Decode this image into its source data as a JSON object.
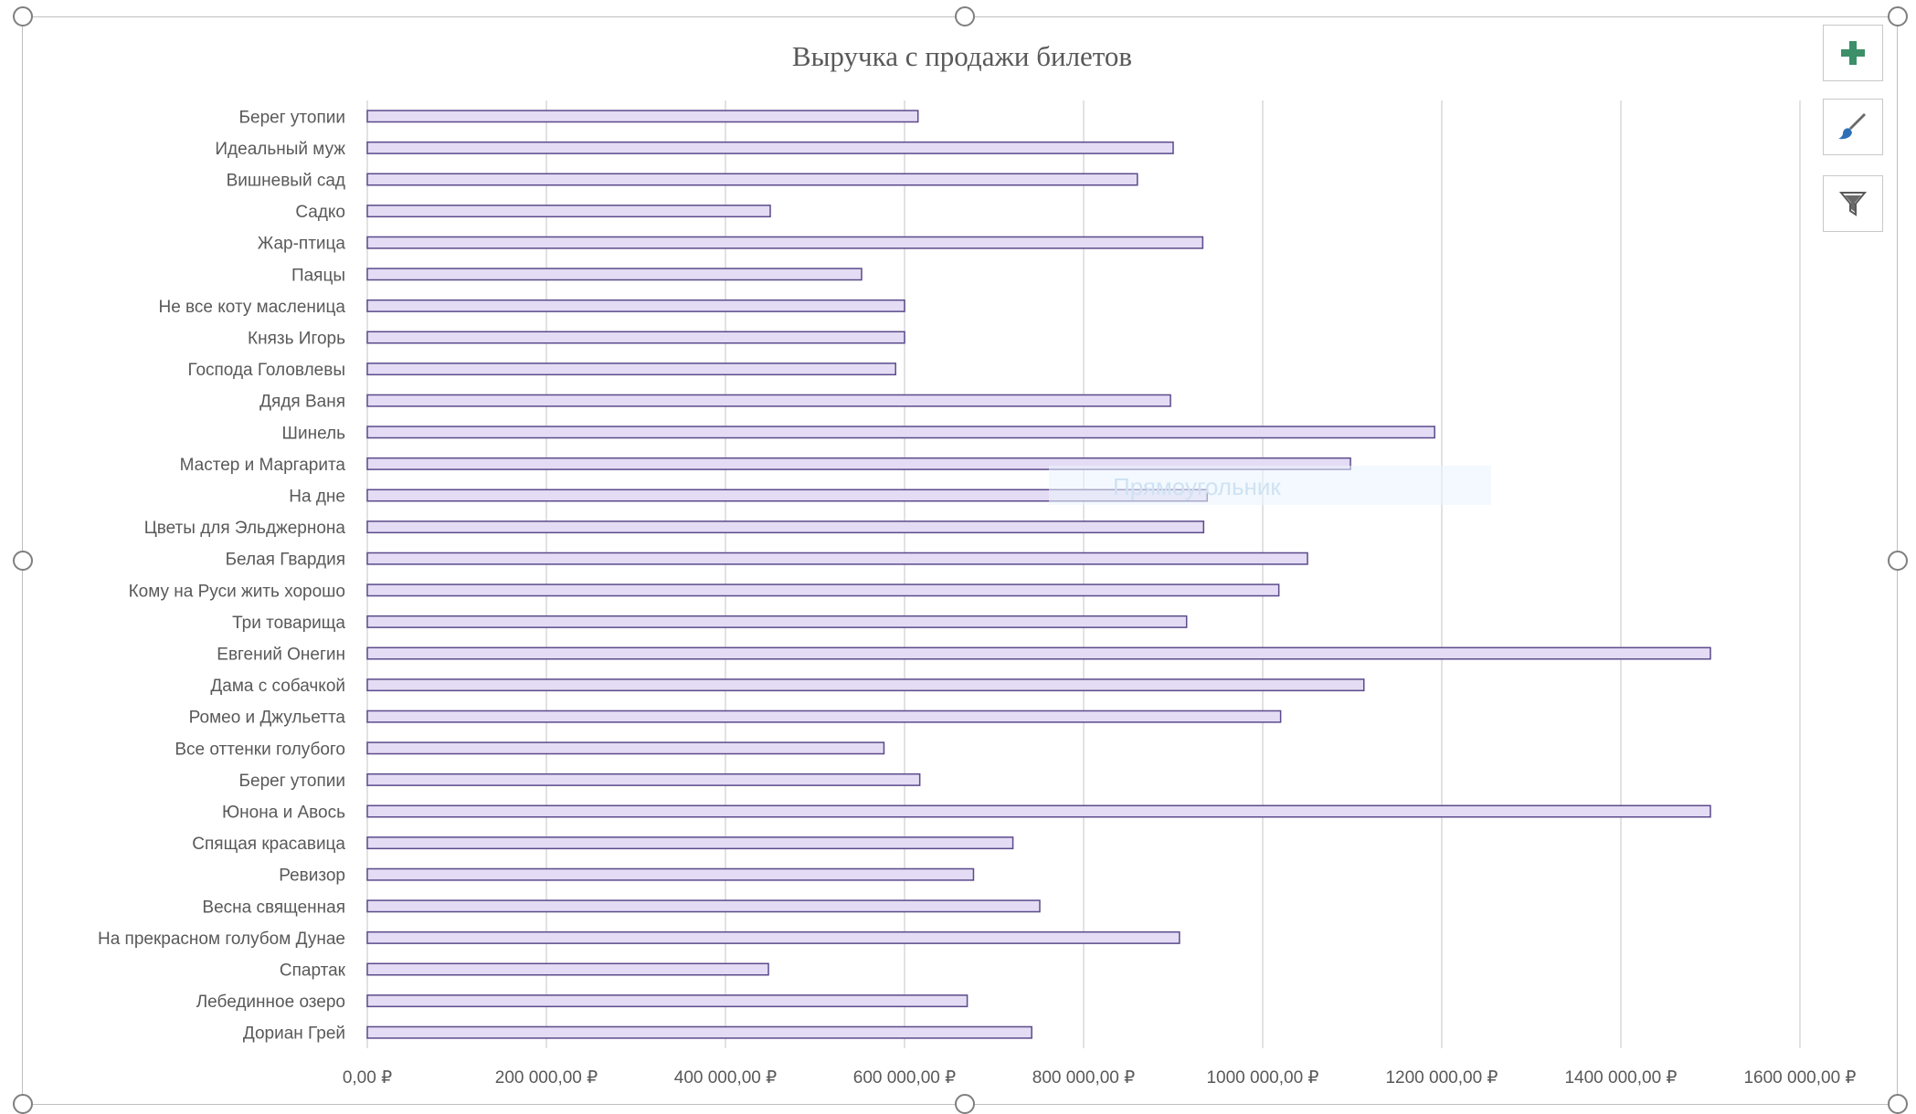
{
  "chart_data": {
    "type": "bar",
    "orientation": "horizontal",
    "title": "Выручка с продажи билетов",
    "categories": [
      "Берег утопии",
      "Идеальный муж",
      "Вишневый сад",
      "Садко",
      "Жар-птица",
      "Паяцы",
      "Не все коту масленица",
      "Князь Игорь",
      "Господа Головлевы",
      "Дядя Ваня",
      "Шинель",
      "Мастер и Маргарита",
      "На дне",
      "Цветы для Эльджернона",
      "Белая Гвардия",
      "Кому на Руси жить хорошо",
      "Три товарища",
      "Евгений Онегин",
      "Дама с собачкой",
      "Ромео и Джульетта",
      "Все оттенки голубого",
      "Берег утопии",
      "Юнона и Авось",
      "Спящая красавица",
      "Ревизор",
      "Весна священная",
      "На прекрасном голубом Дунае",
      "Спартак",
      "Лебединное озеро",
      "Дориан Грей"
    ],
    "values": [
      615000,
      900000,
      860000,
      450000,
      933000,
      552000,
      600000,
      600000,
      590000,
      897000,
      1192000,
      1098000,
      938000,
      934000,
      1050000,
      1018000,
      915000,
      1500000,
      1113000,
      1020000,
      577000,
      617000,
      1500000,
      721000,
      677000,
      751000,
      907000,
      448000,
      670000,
      742000
    ],
    "xlim": [
      0,
      1600000
    ],
    "x_ticks": [
      0,
      200000,
      400000,
      600000,
      800000,
      1000000,
      1200000,
      1400000,
      1600000
    ],
    "x_tick_labels": [
      "0,00 ₽",
      "200 000,00 ₽",
      "400 000,00 ₽",
      "600 000,00 ₽",
      "800 000,00 ₽",
      "1000 000,00 ₽",
      "1200 000,00 ₽",
      "1400 000,00 ₽",
      "1600 000,00 ₽"
    ],
    "grid": "vertical",
    "legend": "none",
    "bar_fill": "#e4dcf4",
    "bar_stroke": "#5b4a8b"
  },
  "overlay": {
    "ghost_label": "Прямоугольник"
  },
  "toolbar": {
    "add_icon": "plus-icon",
    "style_icon": "brush-icon",
    "filter_icon": "filter-icon",
    "add_color": "#3c8f68"
  }
}
